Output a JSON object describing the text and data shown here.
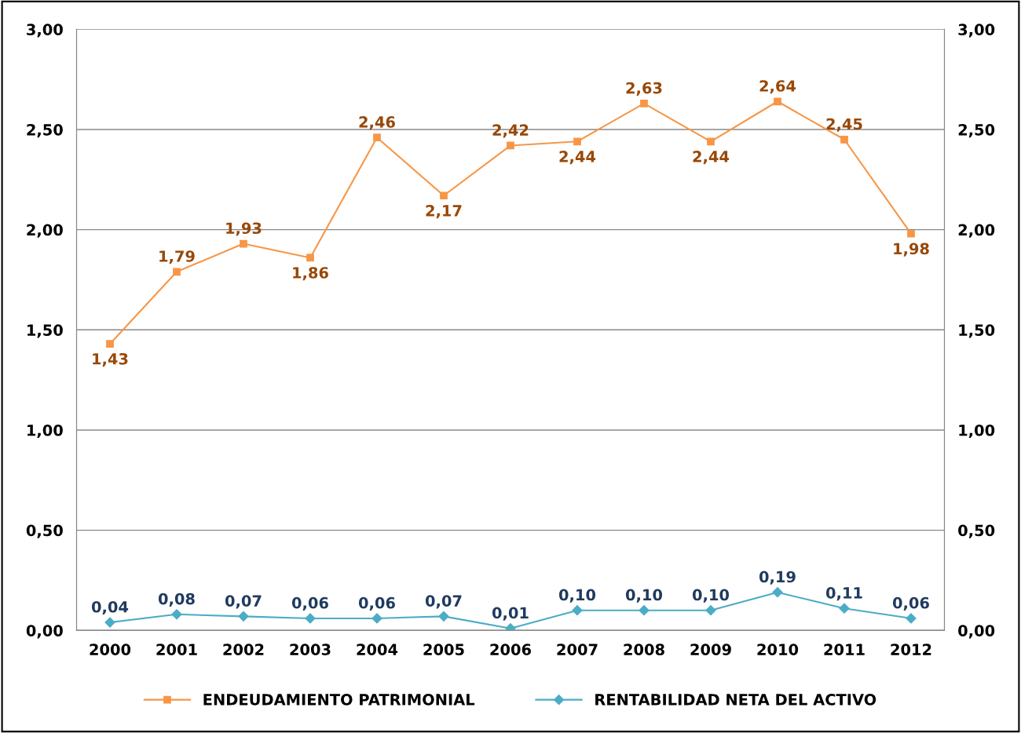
{
  "chart_data": {
    "type": "line",
    "categories": [
      "2000",
      "2001",
      "2002",
      "2003",
      "2004",
      "2005",
      "2006",
      "2007",
      "2008",
      "2009",
      "2010",
      "2011",
      "2012"
    ],
    "series": [
      {
        "name": "ENDEUDAMIENTO PATRIMONIAL",
        "color": "#f79646",
        "marker": "square",
        "values": [
          1.43,
          1.79,
          1.93,
          1.86,
          2.46,
          2.17,
          2.42,
          2.44,
          2.63,
          2.44,
          2.64,
          2.45,
          1.98
        ],
        "value_labels": [
          "1,43",
          "1,79",
          "1,93",
          "1,86",
          "2,46",
          "2,17",
          "2,42",
          "2,44",
          "2,63",
          "2,44",
          "2,64",
          "2,45",
          "1,98"
        ]
      },
      {
        "name": "RENTABILIDAD NETA DEL ACTIVO",
        "color": "#4bacc6",
        "marker": "diamond",
        "axis": "y2",
        "values": [
          0.04,
          0.08,
          0.07,
          0.06,
          0.06,
          0.07,
          0.01,
          0.1,
          0.1,
          0.1,
          0.19,
          0.11,
          0.06
        ],
        "value_labels": [
          "0,04",
          "0,08",
          "0,07",
          "0,06",
          "0,06",
          "0,07",
          "0,01",
          "0,10",
          "0,10",
          "0,10",
          "0,19",
          "0,11",
          "0,06"
        ]
      }
    ],
    "ylim": [
      0,
      3
    ],
    "yticks": [
      {
        "value": 0,
        "label": "0,00"
      },
      {
        "value": 0.5,
        "label": "0,50"
      },
      {
        "value": 1,
        "label": "1,00"
      },
      {
        "value": 1.5,
        "label": "1,50"
      },
      {
        "value": 2,
        "label": "2,00"
      },
      {
        "value": 2.5,
        "label": "2,50"
      },
      {
        "value": 3,
        "label": "3,00"
      }
    ],
    "y2lim": [
      0,
      3
    ],
    "y2ticks": [
      {
        "value": 0,
        "label": "0,00"
      },
      {
        "value": 0.5,
        "label": "0,50"
      },
      {
        "value": 1,
        "label": "1,00"
      },
      {
        "value": 1.5,
        "label": "1,50"
      },
      {
        "value": 2,
        "label": "2,00"
      },
      {
        "value": 2.5,
        "label": "2,50"
      },
      {
        "value": 3,
        "label": "3,00"
      }
    ],
    "grid": "y",
    "legend": "bottom",
    "line_style": "solid"
  }
}
